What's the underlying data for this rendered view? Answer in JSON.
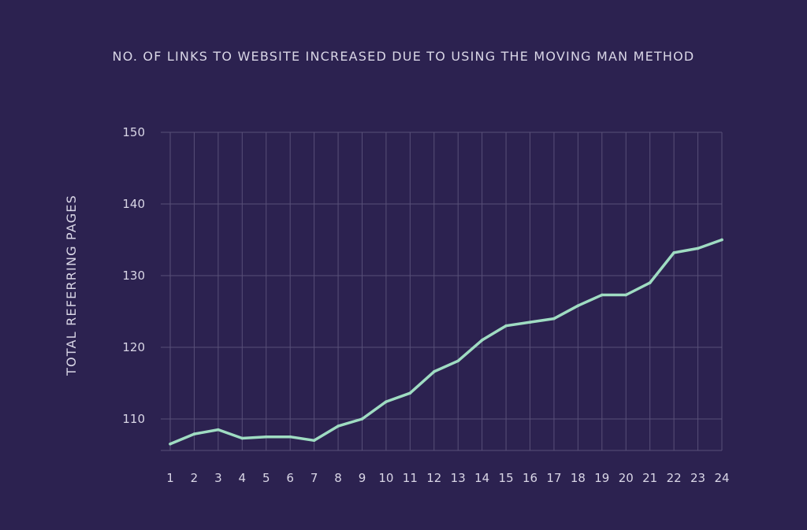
{
  "colors": {
    "background": "#2c2250",
    "grid": "#585078",
    "text": "#d9d6e6",
    "line": "#9fdcc2"
  },
  "chart_data": {
    "type": "line",
    "title": "NO. OF LINKS TO WEBSITE INCREASED DUE TO USING THE MOVING MAN METHOD",
    "xlabel": "",
    "ylabel": "TOTAL REFERRING PAGES",
    "x": [
      "1",
      "2",
      "3",
      "4",
      "5",
      "6",
      "7",
      "8",
      "9",
      "10",
      "11",
      "12",
      "13",
      "14",
      "15",
      "16",
      "17",
      "18",
      "19",
      "20",
      "21",
      "22",
      "23",
      "24"
    ],
    "yticks": [
      110,
      120,
      130,
      140,
      150
    ],
    "ylim": [
      105.6,
      150
    ],
    "grid": true,
    "legend": "none",
    "series": [
      {
        "values": [
          106.5,
          107.9,
          108.5,
          107.3,
          107.5,
          107.5,
          107.0,
          109.0,
          110.0,
          112.4,
          113.6,
          116.6,
          118.1,
          121.0,
          123.0,
          123.5,
          124.0,
          125.8,
          127.3,
          127.3,
          129.0,
          133.2,
          133.8,
          135.0
        ]
      }
    ]
  }
}
